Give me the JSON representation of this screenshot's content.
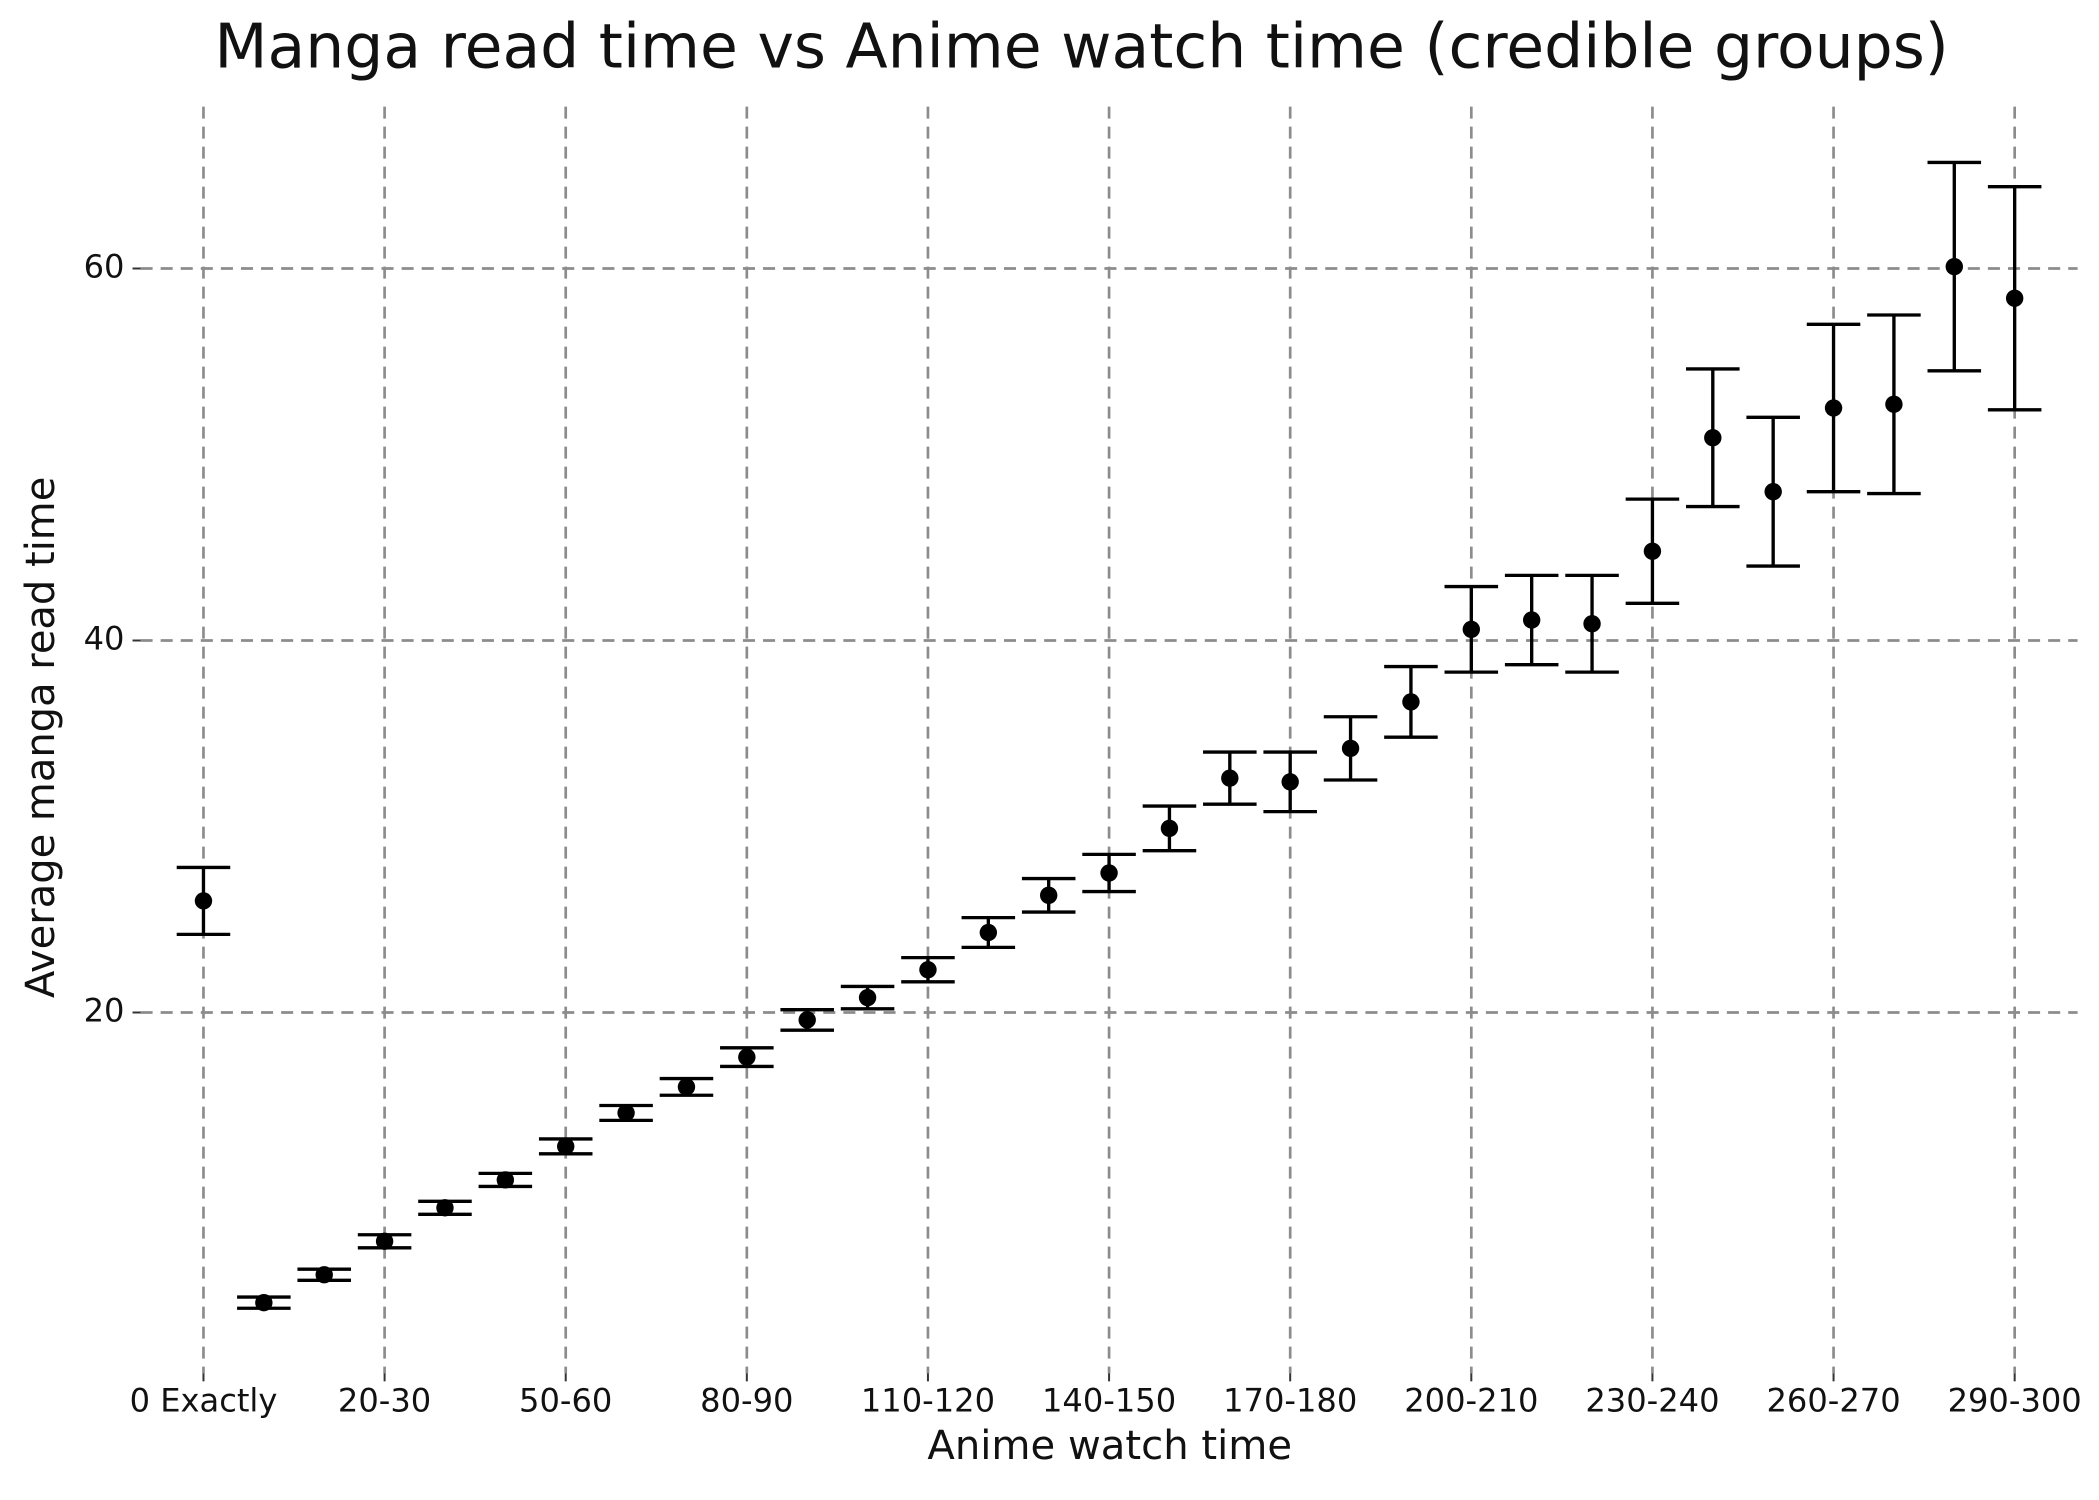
{
  "chart_data": {
    "type": "errorbar",
    "title": "Manga read time vs Anime watch time (credible groups)",
    "x_label": "Anime watch time",
    "y_label": "Average manga read time",
    "categories": [
      "0 Exactly",
      null,
      null,
      "20-30",
      null,
      null,
      "50-60",
      null,
      null,
      "80-90",
      null,
      null,
      "110-120",
      null,
      null,
      "140-150",
      null,
      null,
      "170-180",
      null,
      null,
      "200-210",
      null,
      null,
      "230-240",
      null,
      null,
      "260-270",
      null,
      null,
      "290-300"
    ],
    "values": [
      26.0,
      4.4,
      5.9,
      7.7,
      9.5,
      11.0,
      12.8,
      14.6,
      16.0,
      17.6,
      19.6,
      20.8,
      22.3,
      24.3,
      26.3,
      27.5,
      29.9,
      32.6,
      32.4,
      34.2,
      36.7,
      40.6,
      41.1,
      40.9,
      44.8,
      50.9,
      48.0,
      52.5,
      52.7,
      60.1,
      58.4
    ],
    "errors": [
      1.8,
      0.3,
      0.3,
      0.35,
      0.35,
      0.35,
      0.4,
      0.4,
      0.45,
      0.5,
      0.55,
      0.6,
      0.65,
      0.8,
      0.9,
      1.0,
      1.2,
      1.4,
      1.6,
      1.7,
      1.9,
      2.3,
      2.4,
      2.6,
      2.8,
      3.7,
      4.0,
      4.5,
      4.8,
      5.6,
      6.0
    ],
    "color": "#000000",
    "ylim": [
      0.6,
      68.7
    ],
    "yticks": [
      20,
      40,
      60
    ],
    "grid": true
  }
}
